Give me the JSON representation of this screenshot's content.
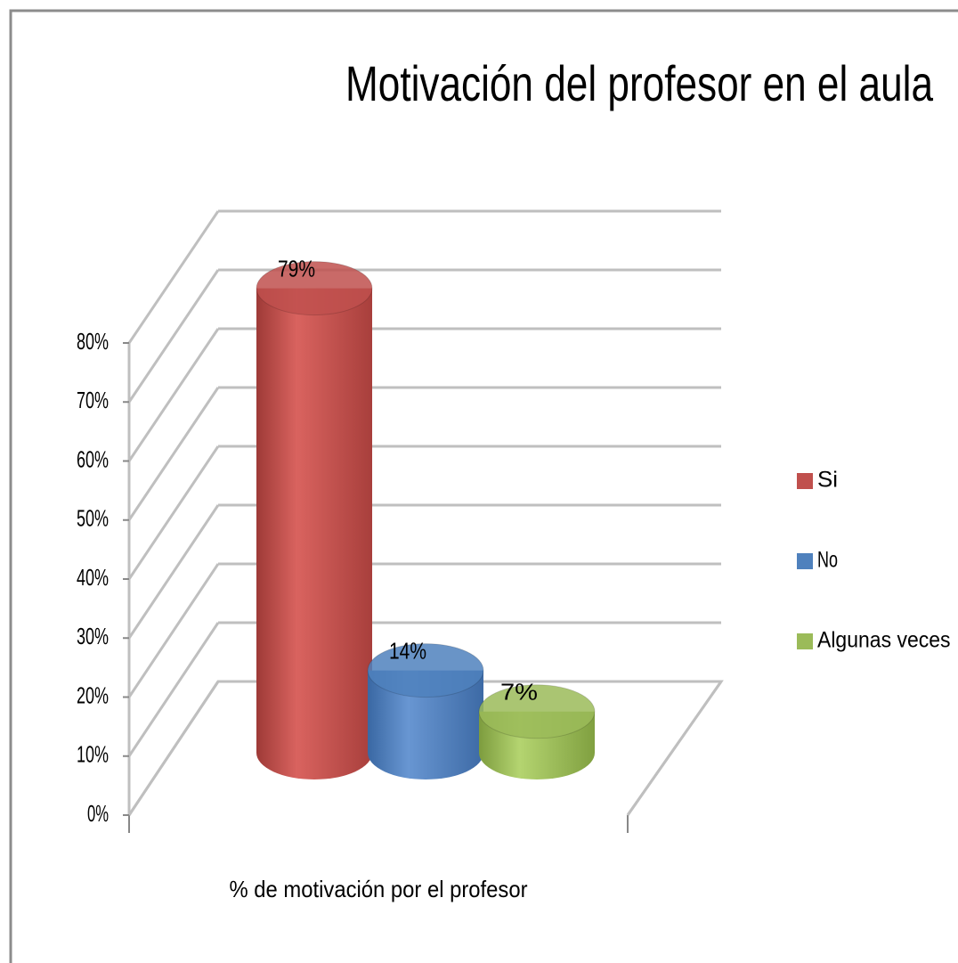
{
  "chart_data": {
    "type": "bar",
    "title": "Motivación del profesor en el aula",
    "categories": [
      "% de motivación por el profesor"
    ],
    "series": [
      {
        "name": "Si",
        "color": "#c0504d",
        "values": [
          79
        ],
        "value_labels": [
          "79%"
        ]
      },
      {
        "name": "No",
        "color": "#4f81bd",
        "values": [
          14
        ],
        "value_labels": [
          "14%"
        ]
      },
      {
        "name": "Algunas veces",
        "color": "#9bbb59",
        "values": [
          7
        ],
        "value_labels": [
          "7%"
        ]
      }
    ],
    "ylim": [
      0,
      80
    ],
    "yticks": [
      {
        "value": 0,
        "label": "0%"
      },
      {
        "value": 10,
        "label": "10%"
      },
      {
        "value": 20,
        "label": "20%"
      },
      {
        "value": 30,
        "label": "30%"
      },
      {
        "value": 40,
        "label": "40%"
      },
      {
        "value": 50,
        "label": "50%"
      },
      {
        "value": 60,
        "label": "60%"
      },
      {
        "value": 70,
        "label": "70%"
      },
      {
        "value": 80,
        "label": "80%"
      }
    ],
    "grid": true,
    "legend": "right"
  }
}
